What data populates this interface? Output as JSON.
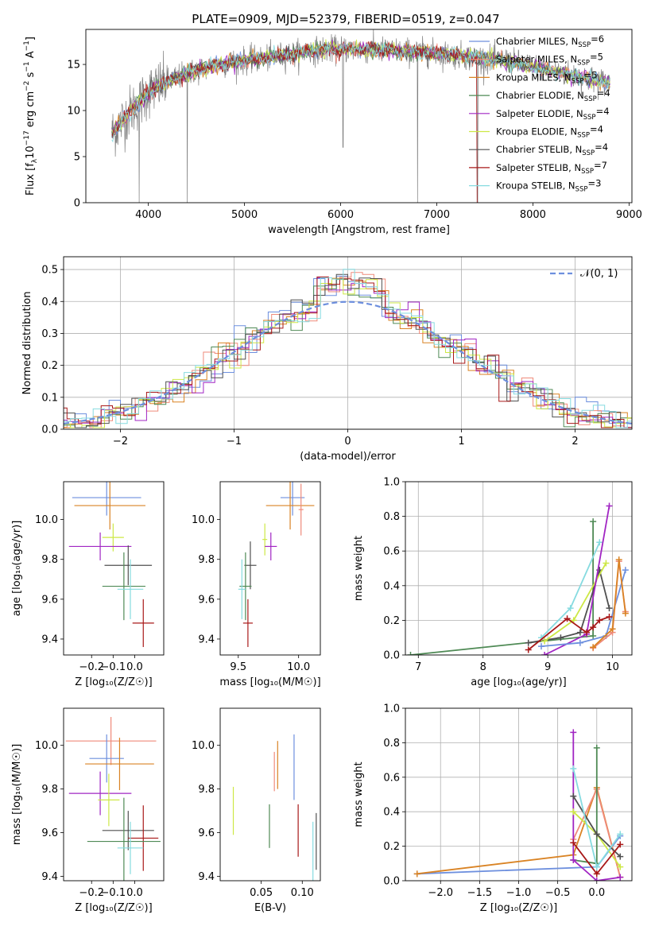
{
  "figure_title": "PLATE=0909, MJD=52379, FIBERID=0519, z=0.047",
  "colors": {
    "Chabrier MILES": "#6d8fde",
    "Salpeter MILES": "#ef8a7a",
    "Kroupa MILES": "#d98324",
    "Chabrier ELODIE": "#4f8a55",
    "Salpeter ELODIE": "#a125c3",
    "Kroupa ELODIE": "#cde845",
    "Chabrier STELIB": "#505050",
    "Salpeter STELIB": "#a81818",
    "Kroupa STELIB": "#86dbe0",
    "data": "#7f7f7f",
    "gauss": "#6d8fde"
  },
  "chart_data": [
    {
      "id": "spectrum",
      "type": "line",
      "title": "PLATE=0909, MJD=52379, FIBERID=0519, z=0.047",
      "xlabel": "wavelength [Angstrom, rest frame]",
      "ylabel_parts": [
        "Flux [f",
        "λ",
        "10",
        "−17",
        " erg cm",
        "−2",
        " s",
        "−1",
        " A",
        "−1",
        "]"
      ],
      "xlim": [
        3350,
        9030
      ],
      "ylim": [
        0,
        18.8
      ],
      "xticks": [
        4000,
        5000,
        6000,
        7000,
        8000,
        9000
      ],
      "yticks": [
        0,
        5,
        10,
        15
      ],
      "continuum": {
        "x": [
          3620,
          3700,
          3800,
          3900,
          4000,
          4100,
          4300,
          4500,
          4700,
          4900,
          5100,
          5300,
          5500,
          5700,
          5900,
          6100,
          6300,
          6500,
          6700,
          6900,
          7100,
          7300,
          7500,
          7700,
          7900,
          8100,
          8300,
          8500,
          8700,
          8800
        ],
        "y": [
          7.5,
          8.5,
          9.8,
          10.8,
          12.0,
          12.6,
          13.6,
          14.3,
          14.9,
          15.3,
          15.5,
          15.8,
          16.1,
          16.5,
          16.6,
          16.7,
          16.6,
          16.5,
          16.4,
          16.3,
          16.1,
          15.9,
          15.6,
          15.4,
          15.0,
          14.5,
          14.1,
          13.6,
          13.2,
          13.0
        ]
      },
      "data_x_range": [
        3620,
        8800
      ],
      "dropouts": [
        {
          "x": 3905,
          "y": 0
        },
        {
          "x": 4405,
          "y": 0
        },
        {
          "x": 6025,
          "y": 6
        },
        {
          "x": 6800,
          "y": 0
        },
        {
          "x": 7425,
          "y": 0
        }
      ],
      "legend": [
        {
          "model": "Chabrier MILES",
          "label": "Chabrier MILES, N",
          "sub": "SSP",
          "n": "=6"
        },
        {
          "model": "Salpeter MILES",
          "label": "Salpeter MILES, N",
          "sub": "SSP",
          "n": "=5"
        },
        {
          "model": "Kroupa MILES",
          "label": "Kroupa MILES, N",
          "sub": "SSP",
          "n": "=5"
        },
        {
          "model": "Chabrier ELODIE",
          "label": "Chabrier ELODIE, N",
          "sub": "SSP",
          "n": "=4"
        },
        {
          "model": "Salpeter ELODIE",
          "label": "Salpeter ELODIE, N",
          "sub": "SSP",
          "n": "=4"
        },
        {
          "model": "Kroupa ELODIE",
          "label": "Kroupa ELODIE, N",
          "sub": "SSP",
          "n": "=4"
        },
        {
          "model": "Chabrier STELIB",
          "label": "Chabrier STELIB, N",
          "sub": "SSP",
          "n": "=4"
        },
        {
          "model": "Salpeter STELIB",
          "label": "Salpeter STELIB, N",
          "sub": "SSP",
          "n": "=7"
        },
        {
          "model": "Kroupa STELIB",
          "label": "Kroupa STELIB, N",
          "sub": "SSP",
          "n": "=3"
        }
      ]
    },
    {
      "id": "residuals",
      "type": "line",
      "xlabel": "(data-model)/error",
      "ylabel": "Normed distribution",
      "xlim": [
        -2.5,
        2.5
      ],
      "ylim": [
        0,
        0.54
      ],
      "xticks": [
        -2,
        -1,
        0,
        1,
        2
      ],
      "yticks": [
        0.0,
        0.1,
        0.2,
        0.3,
        0.4,
        0.5
      ],
      "grid": true,
      "gauss_label": "𝒩(0, 1)",
      "bin_width": 0.1
    },
    {
      "id": "age_vs_Z",
      "type": "scatter",
      "xlabel": "Z [log₁₀(Z/Z☉)]",
      "ylabel": "age  [log₁₀(age/yr)]",
      "xlim": [
        -0.33,
        0.135
      ],
      "ylim": [
        9.32,
        10.19
      ],
      "xticks": [
        -0.2,
        -0.1,
        0.0
      ],
      "xticklabels": [
        "−0.2",
        "−0.1",
        "0.0"
      ],
      "yticks": [
        9.4,
        9.6,
        9.8,
        10.0
      ],
      "points": [
        {
          "model": "Chabrier MILES",
          "x": -0.13,
          "y": 10.11,
          "xerr": 0.16,
          "yerr": 0.09
        },
        {
          "model": "Kroupa MILES",
          "x": -0.115,
          "y": 10.07,
          "xerr": 0.165,
          "yerr": 0.12
        },
        {
          "model": "Kroupa ELODIE",
          "x": -0.1,
          "y": 9.91,
          "xerr": 0.05,
          "yerr": 0.07
        },
        {
          "model": "Salpeter ELODIE",
          "x": -0.16,
          "y": 9.865,
          "xerr": 0.145,
          "yerr": 0.07
        },
        {
          "model": "Chabrier STELIB",
          "x": -0.03,
          "y": 9.77,
          "xerr": 0.11,
          "yerr": 0.1
        },
        {
          "model": "Chabrier ELODIE",
          "x": -0.05,
          "y": 9.665,
          "xerr": 0.1,
          "yerr": 0.17
        },
        {
          "model": "Kroupa STELIB",
          "x": -0.02,
          "y": 9.65,
          "xerr": 0.06,
          "yerr": 0.15
        },
        {
          "model": "Salpeter STELIB",
          "x": 0.04,
          "y": 9.48,
          "xerr": 0.05,
          "yerr": 0.12
        }
      ]
    },
    {
      "id": "age_vs_mass",
      "type": "scatter",
      "xlabel": "mass [log₁₀(M/M☉)]",
      "xlim": [
        9.35,
        10.18
      ],
      "ylim": [
        9.32,
        10.19
      ],
      "xticks": [
        9.5,
        10.0
      ],
      "yticks": [
        9.4,
        9.6,
        9.8,
        10.0
      ],
      "points": [
        {
          "model": "Chabrier MILES",
          "x": 9.95,
          "y": 10.11,
          "xerr": 0.1,
          "yerr": 0.09
        },
        {
          "model": "Kroupa MILES",
          "x": 9.93,
          "y": 10.07,
          "xerr": 0.2,
          "yerr": 0.12
        },
        {
          "model": "Salpeter MILES",
          "x": 10.02,
          "y": 10.05,
          "xerr": 0.02,
          "yerr": 0.13
        },
        {
          "model": "Kroupa ELODIE",
          "x": 9.72,
          "y": 9.9,
          "xerr": 0.02,
          "yerr": 0.08
        },
        {
          "model": "Salpeter ELODIE",
          "x": 9.77,
          "y": 9.865,
          "xerr": 0.05,
          "yerr": 0.07
        },
        {
          "model": "Chabrier STELIB",
          "x": 9.6,
          "y": 9.77,
          "xerr": 0.05,
          "yerr": 0.12
        },
        {
          "model": "Chabrier ELODIE",
          "x": 9.56,
          "y": 9.665,
          "xerr": 0.05,
          "yerr": 0.17
        },
        {
          "model": "Kroupa STELIB",
          "x": 9.53,
          "y": 9.65,
          "xerr": 0.03,
          "yerr": 0.15
        },
        {
          "model": "Salpeter STELIB",
          "x": 9.58,
          "y": 9.48,
          "xerr": 0.04,
          "yerr": 0.12
        }
      ]
    },
    {
      "id": "weight_vs_age",
      "type": "line",
      "xlabel": "age  [log₁₀(age/yr)]",
      "ylabel": "mass weight",
      "xlim": [
        6.8,
        10.3
      ],
      "ylim": [
        0,
        1
      ],
      "xticks": [
        7,
        8,
        9,
        10
      ],
      "yticks": [
        0.0,
        0.2,
        0.4,
        0.6,
        0.8,
        1.0
      ],
      "grid": true,
      "series": [
        {
          "model": "Chabrier ELODIE",
          "x": [
            6.88,
            9.7,
            9.7
          ],
          "y": [
            0.0,
            0.11,
            0.77
          ]
        },
        {
          "model": "Chabrier STELIB",
          "x": [
            8.7,
            9.2,
            9.5,
            9.8,
            9.95
          ],
          "y": [
            0.07,
            0.1,
            0.13,
            0.49,
            0.27
          ]
        },
        {
          "model": "Kroupa STELIB",
          "x": [
            8.9,
            9.35,
            9.8
          ],
          "y": [
            0.1,
            0.27,
            0.65
          ]
        },
        {
          "model": "Kroupa ELODIE",
          "x": [
            8.95,
            9.4,
            9.9
          ],
          "y": [
            0.08,
            0.2,
            0.53
          ]
        },
        {
          "model": "Salpeter ELODIE",
          "x": [
            8.95,
            9.6,
            9.95
          ],
          "y": [
            0.0,
            0.12,
            0.86
          ]
        },
        {
          "model": "Chabrier MILES",
          "x": [
            8.9,
            9.5,
            9.9,
            10.2
          ],
          "y": [
            0.05,
            0.07,
            0.11,
            0.49
          ]
        },
        {
          "model": "Salpeter MILES",
          "x": [
            9.7,
            10.0,
            10.1,
            10.2
          ],
          "y": [
            0.04,
            0.13,
            0.54,
            0.25
          ]
        },
        {
          "model": "Kroupa MILES",
          "x": [
            9.7,
            10.0,
            10.1,
            10.2
          ],
          "y": [
            0.045,
            0.15,
            0.55,
            0.24
          ]
        },
        {
          "model": "Salpeter STELIB",
          "x": [
            8.7,
            9.3,
            9.6,
            9.7,
            9.8,
            9.95
          ],
          "y": [
            0.03,
            0.21,
            0.13,
            0.16,
            0.2,
            0.22
          ]
        }
      ]
    },
    {
      "id": "mass_vs_Z",
      "type": "scatter",
      "xlabel": "Z [log₁₀(Z/Z☉)]",
      "ylabel": "mass [log₁₀(M/M☉)]",
      "xlim": [
        -0.33,
        0.135
      ],
      "ylim": [
        9.38,
        10.17
      ],
      "xticks": [
        -0.2,
        -0.1,
        0.0
      ],
      "xticklabels": [
        "−0.2",
        "−0.1",
        "0.0"
      ],
      "yticks": [
        9.4,
        9.6,
        9.8,
        10.0
      ],
      "points": [
        {
          "model": "Salpeter MILES",
          "x": -0.11,
          "y": 10.02,
          "xerr": 0.21,
          "yerr": 0.11
        },
        {
          "model": "Chabrier MILES",
          "x": -0.13,
          "y": 9.94,
          "xerr": 0.08,
          "yerr": 0.11
        },
        {
          "model": "Kroupa MILES",
          "x": -0.07,
          "y": 9.915,
          "xerr": 0.16,
          "yerr": 0.12
        },
        {
          "model": "Salpeter ELODIE",
          "x": -0.16,
          "y": 9.78,
          "xerr": 0.145,
          "yerr": 0.1
        },
        {
          "model": "Kroupa ELODIE",
          "x": -0.12,
          "y": 9.75,
          "xerr": 0.05,
          "yerr": 0.12
        },
        {
          "model": "Chabrier STELIB",
          "x": -0.03,
          "y": 9.61,
          "xerr": 0.12,
          "yerr": 0.09
        },
        {
          "model": "Salpeter STELIB",
          "x": 0.04,
          "y": 9.575,
          "xerr": 0.07,
          "yerr": 0.15
        },
        {
          "model": "Chabrier ELODIE",
          "x": -0.05,
          "y": 9.56,
          "xerr": 0.17,
          "yerr": 0.2
        },
        {
          "model": "Kroupa STELIB",
          "x": -0.02,
          "y": 9.53,
          "xerr": 0.06,
          "yerr": 0.12
        }
      ]
    },
    {
      "id": "mass_vs_EBV",
      "type": "scatter",
      "xlabel": "E(B-V)",
      "xlim": [
        0.0,
        0.122
      ],
      "ylim": [
        9.38,
        10.17
      ],
      "xticks": [
        0.05,
        0.1
      ],
      "xticklabels": [
        "0.05",
        "0.10"
      ],
      "yticks": [
        9.4,
        9.6,
        9.8,
        10.0
      ],
      "points": [
        {
          "model": "Kroupa ELODIE",
          "x": 0.016,
          "y": 9.7,
          "yerr": 0.11
        },
        {
          "model": "Chabrier ELODIE",
          "x": 0.06,
          "y": 9.63,
          "yerr": 0.1
        },
        {
          "model": "Salpeter MILES",
          "x": 0.066,
          "y": 9.88,
          "yerr": 0.09
        },
        {
          "model": "Kroupa MILES",
          "x": 0.07,
          "y": 9.91,
          "yerr": 0.11
        },
        {
          "model": "Chabrier MILES",
          "x": 0.09,
          "y": 9.9,
          "yerr": 0.15
        },
        {
          "model": "Salpeter STELIB",
          "x": 0.095,
          "y": 9.61,
          "yerr": 0.12
        },
        {
          "model": "Kroupa STELIB",
          "x": 0.113,
          "y": 9.5,
          "yerr": 0.15
        },
        {
          "model": "Chabrier STELIB",
          "x": 0.117,
          "y": 9.56,
          "yerr": 0.13
        }
      ]
    },
    {
      "id": "weight_vs_Z",
      "type": "line",
      "xlabel": "Z [log₁₀(Z/Z☉)]",
      "ylabel": "mass weight",
      "xlim": [
        -2.45,
        0.45
      ],
      "ylim": [
        0,
        1
      ],
      "xticks": [
        -2.0,
        -1.5,
        -1.0,
        -0.5,
        0.0
      ],
      "xticklabels": [
        "−2.0",
        "−1.5",
        "−1.0",
        "−0.5",
        "0.0"
      ],
      "yticks": [
        0.0,
        0.2,
        0.4,
        0.6,
        0.8,
        1.0
      ],
      "grid": true,
      "series": [
        {
          "model": "Chabrier MILES",
          "x": [
            -2.3,
            0.0,
            0.3
          ],
          "y": [
            0.04,
            0.08,
            0.26
          ]
        },
        {
          "model": "Kroupa MILES",
          "x": [
            -2.3,
            -0.3,
            0.0,
            0.3
          ],
          "y": [
            0.04,
            0.15,
            0.54,
            0.02
          ]
        },
        {
          "model": "Salpeter MILES",
          "x": [
            -0.3,
            0.0,
            0.3
          ],
          "y": [
            0.24,
            0.53,
            0.02
          ]
        },
        {
          "model": "Chabrier ELODIE",
          "x": [
            -0.3,
            0.0,
            0.0
          ],
          "y": [
            0.12,
            0.1,
            0.77
          ]
        },
        {
          "model": "Salpeter ELODIE",
          "x": [
            -0.3,
            -0.3,
            0.0,
            0.3
          ],
          "y": [
            0.86,
            0.12,
            0.0,
            0.02
          ]
        },
        {
          "model": "Kroupa ELODIE",
          "x": [
            -0.3,
            0.0,
            0.3
          ],
          "y": [
            0.4,
            0.27,
            0.08
          ]
        },
        {
          "model": "Chabrier STELIB",
          "x": [
            -0.3,
            0.0,
            0.3
          ],
          "y": [
            0.49,
            0.27,
            0.14
          ]
        },
        {
          "model": "Kroupa STELIB",
          "x": [
            -0.3,
            0.0,
            0.3
          ],
          "y": [
            0.65,
            0.08,
            0.27
          ]
        },
        {
          "model": "Salpeter STELIB",
          "x": [
            -0.3,
            0.0,
            0.3
          ],
          "y": [
            0.22,
            0.04,
            0.21
          ]
        }
      ]
    }
  ]
}
